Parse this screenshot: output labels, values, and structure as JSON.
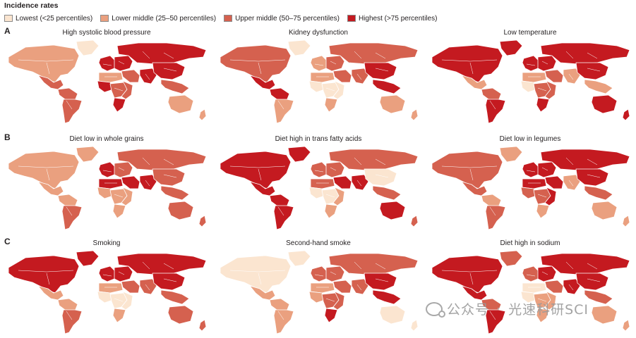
{
  "legend": {
    "title": "Incidence rates",
    "items": [
      {
        "label": "Lowest (<25 percentiles)",
        "color": "#fbe5d0"
      },
      {
        "label": "Lower middle (25–50 percentiles)",
        "color": "#eaa07f"
      },
      {
        "label": "Upper middle (50–75 percentiles)",
        "color": "#d5614f"
      },
      {
        "label": "Highest (>75 percentiles)",
        "color": "#c41a20"
      }
    ]
  },
  "rows": [
    {
      "letter": "A",
      "panels": [
        {
          "title": "High systolic blood pressure",
          "levels": {
            "nam": 1,
            "grn": 0,
            "cam": 2,
            "sam1": 2,
            "sam2": 2,
            "wer": 3,
            "eer": 3,
            "rus": 3,
            "mea": 2,
            "saf": 3,
            "naf": 1,
            "waf": 3,
            "caf": 2,
            "eaf": 2,
            "sas": 3,
            "eas": 3,
            "sea": 2,
            "aus": 1,
            "nz": 1
          }
        },
        {
          "title": "Kidney dysfunction",
          "levels": {
            "nam": 2,
            "grn": 0,
            "cam": 3,
            "sam1": 3,
            "sam2": 1,
            "wer": 1,
            "eer": 2,
            "rus": 2,
            "mea": 2,
            "saf": 1,
            "naf": 1,
            "waf": 0,
            "caf": 0,
            "eaf": 0,
            "sas": 2,
            "eas": 3,
            "sea": 3,
            "aus": 1,
            "nz": 1
          }
        },
        {
          "title": "Low temperature",
          "levels": {
            "nam": 3,
            "grn": 3,
            "cam": 1,
            "sam1": 2,
            "sam2": 3,
            "wer": 3,
            "eer": 3,
            "rus": 3,
            "mea": 2,
            "saf": 3,
            "naf": 1,
            "waf": 0,
            "caf": 2,
            "eaf": 2,
            "sas": 1,
            "eas": 3,
            "sea": 1,
            "aus": 3,
            "nz": 3
          }
        }
      ]
    },
    {
      "letter": "B",
      "panels": [
        {
          "title": "Diet low in whole grains",
          "levels": {
            "nam": 1,
            "grn": 1,
            "cam": 1,
            "sam1": 1,
            "sam2": 2,
            "wer": 3,
            "eer": 2,
            "rus": 2,
            "mea": 3,
            "saf": 1,
            "naf": 3,
            "waf": 1,
            "caf": 1,
            "eaf": 1,
            "sas": 3,
            "eas": 2,
            "sea": 2,
            "aus": 2,
            "nz": 2
          }
        },
        {
          "title": "Diet high in trans fatty acids",
          "levels": {
            "nam": 3,
            "grn": 3,
            "cam": 3,
            "sam1": 3,
            "sam2": 3,
            "wer": 2,
            "eer": 2,
            "rus": 2,
            "mea": 3,
            "saf": 1,
            "naf": 2,
            "waf": 0,
            "caf": 0,
            "eaf": 1,
            "sas": 3,
            "eas": 0,
            "sea": 2,
            "aus": 3,
            "nz": 2
          }
        },
        {
          "title": "Diet low in legumes",
          "levels": {
            "nam": 2,
            "grn": 1,
            "cam": 2,
            "sam1": 1,
            "sam2": 2,
            "wer": 3,
            "eer": 3,
            "rus": 3,
            "mea": 3,
            "saf": 1,
            "naf": 3,
            "waf": 2,
            "caf": 2,
            "eaf": 3,
            "sas": 1,
            "eas": 3,
            "sea": 2,
            "aus": 1,
            "nz": 1
          }
        }
      ]
    },
    {
      "letter": "C",
      "panels": [
        {
          "title": "Smoking",
          "levels": {
            "nam": 3,
            "grn": 3,
            "cam": 1,
            "sam1": 1,
            "sam2": 2,
            "wer": 3,
            "eer": 3,
            "rus": 3,
            "mea": 2,
            "saf": 1,
            "naf": 1,
            "waf": 0,
            "caf": 0,
            "eaf": 0,
            "sas": 2,
            "eas": 3,
            "sea": 2,
            "aus": 2,
            "nz": 2
          }
        },
        {
          "title": "Second-hand smoke",
          "levels": {
            "nam": 0,
            "grn": 0,
            "cam": 1,
            "sam1": 1,
            "sam2": 1,
            "wer": 2,
            "eer": 2,
            "rus": 2,
            "mea": 2,
            "saf": 3,
            "naf": 1,
            "waf": 1,
            "caf": 2,
            "eaf": 2,
            "sas": 2,
            "eas": 3,
            "sea": 3,
            "aus": 0,
            "nz": 0
          }
        },
        {
          "title": "Diet high in sodium",
          "levels": {
            "nam": 3,
            "grn": 2,
            "cam": 3,
            "sam1": 2,
            "sam2": 3,
            "wer": 2,
            "eer": 3,
            "rus": 3,
            "mea": 2,
            "saf": 1,
            "naf": 0,
            "waf": 0,
            "caf": 1,
            "eaf": 1,
            "sas": 3,
            "eas": 3,
            "sea": 2,
            "aus": 1,
            "nz": 1
          }
        }
      ]
    }
  ],
  "watermark": {
    "icon": "wechat-icon",
    "left": "公众号",
    "sep": "·",
    "right": "光速科研SCI"
  }
}
